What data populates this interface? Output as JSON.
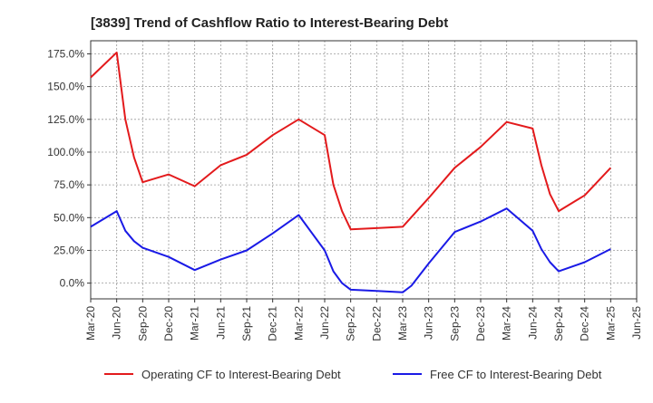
{
  "chart_data": {
    "type": "line",
    "title": "[3839]  Trend of Cashflow Ratio to Interest-Bearing Debt",
    "xlabel": "",
    "ylabel": "",
    "x_ticks": [
      "Mar-20",
      "Jun-20",
      "Sep-20",
      "Dec-20",
      "Mar-21",
      "Jun-21",
      "Sep-21",
      "Dec-21",
      "Mar-22",
      "Jun-22",
      "Sep-22",
      "Dec-22",
      "Mar-23",
      "Jun-23",
      "Sep-23",
      "Dec-23",
      "Mar-24",
      "Jun-24",
      "Sep-24",
      "Dec-24",
      "Mar-25",
      "Jun-25"
    ],
    "y_ticks": [
      "0.0%",
      "25.0%",
      "50.0%",
      "75.0%",
      "100.0%",
      "125.0%",
      "150.0%",
      "175.0%"
    ],
    "y_tick_values": [
      0,
      25,
      50,
      75,
      100,
      125,
      150,
      175
    ],
    "ylim": [
      -12,
      185
    ],
    "xlim": [
      "Mar-20",
      "Jun-25"
    ],
    "grid": true,
    "legend_position": "bottom",
    "series": [
      {
        "name": "Operating CF to Interest-Bearing Debt",
        "color": "#e31a1c",
        "x": [
          "Mar-20",
          "Jun-20",
          "Jul-20",
          "Aug-20",
          "Sep-20",
          "Dec-20",
          "Mar-21",
          "Jun-21",
          "Sep-21",
          "Dec-21",
          "Mar-22",
          "Jun-22",
          "Jul-22",
          "Aug-22",
          "Sep-22",
          "Dec-22",
          "Mar-23",
          "Jun-23",
          "Sep-23",
          "Dec-23",
          "Mar-24",
          "Jun-24",
          "Jul-24",
          "Aug-24",
          "Sep-24",
          "Dec-24",
          "Mar-25"
        ],
        "values": [
          157,
          176,
          125,
          96,
          77,
          83,
          74,
          90,
          98,
          113,
          125,
          113,
          75,
          55,
          41,
          42,
          43,
          65,
          88,
          104,
          123,
          118,
          90,
          68,
          55,
          67,
          88
        ]
      },
      {
        "name": "Free CF to Interest-Bearing Debt",
        "color": "#1a1ae6",
        "x": [
          "Mar-20",
          "Jun-20",
          "Jul-20",
          "Aug-20",
          "Sep-20",
          "Dec-20",
          "Mar-21",
          "Jun-21",
          "Sep-21",
          "Dec-21",
          "Mar-22",
          "Jun-22",
          "Jul-22",
          "Aug-22",
          "Sep-22",
          "Dec-22",
          "Mar-23",
          "Apr-23",
          "Jun-23",
          "Sep-23",
          "Dec-23",
          "Mar-24",
          "Jun-24",
          "Jul-24",
          "Aug-24",
          "Sep-24",
          "Dec-24",
          "Mar-25"
        ],
        "values": [
          43,
          55,
          40,
          32,
          27,
          20,
          10,
          18,
          25,
          38,
          52,
          25,
          9,
          0,
          -5,
          -6,
          -7,
          -2,
          15,
          39,
          47,
          57,
          40,
          26,
          16,
          9,
          16,
          26
        ]
      }
    ]
  }
}
